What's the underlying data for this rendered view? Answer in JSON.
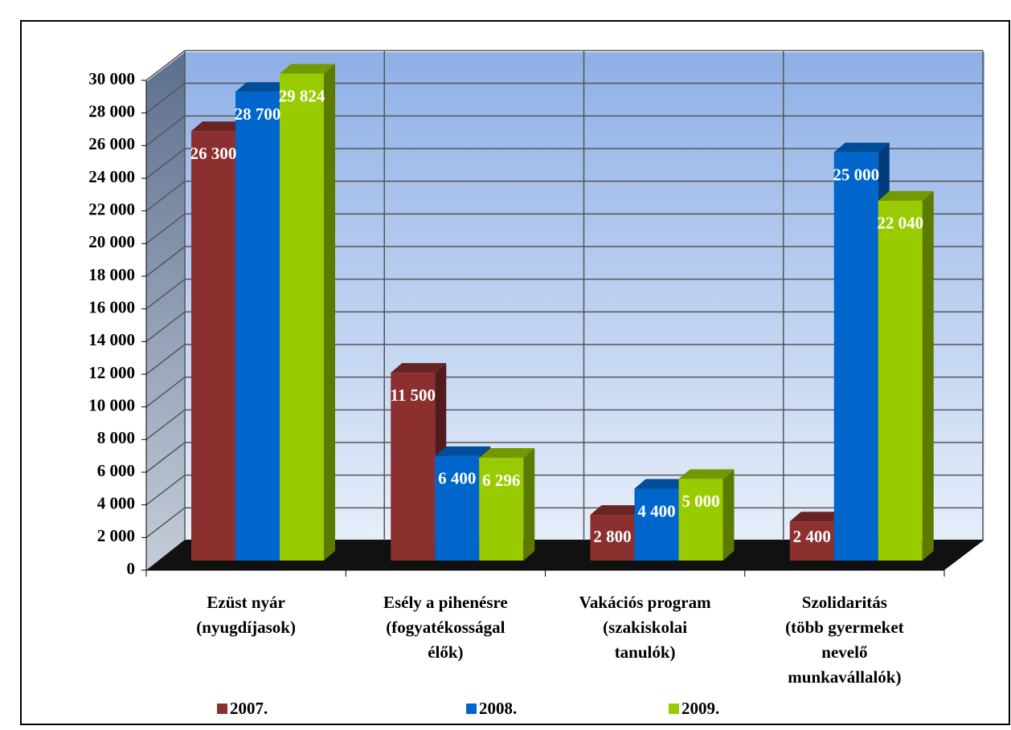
{
  "chart_data": {
    "type": "bar3d",
    "categories": [
      "Ezüst nyár\n(nyugdíjasok)",
      "Esély a pihenésre\n(fogyatékosságal\nélők)",
      "Vakációs program\n(szakiskolai\ntanulók)",
      "Szolidaritás\n(több gyermeket\nnevelő\nmunkavállalók)"
    ],
    "series": [
      {
        "name": "2007.",
        "color": "#8b2f2f",
        "values": [
          26300,
          11500,
          2800,
          2400
        ],
        "value_labels": [
          "26 300",
          "11 500",
          "2 800",
          "2 400"
        ]
      },
      {
        "name": "2008.",
        "color": "#0066cc",
        "values": [
          28700,
          6400,
          4400,
          25000
        ],
        "value_labels": [
          "28 700",
          "6 400",
          "4 400",
          "25 000"
        ]
      },
      {
        "name": "2009.",
        "color": "#99cc00",
        "values": [
          29824,
          6296,
          5000,
          22040
        ],
        "value_labels": [
          "29 824",
          "6 296",
          "5 000",
          "22 040"
        ]
      }
    ],
    "ylim": [
      0,
      30000
    ],
    "yticks": [
      0,
      {
        "value": 2000,
        "label": "2 000"
      },
      {
        "value": 4000,
        "label": "4 000"
      },
      {
        "value": 6000,
        "label": "6 000"
      },
      {
        "value": 8000,
        "label": "8 000"
      },
      {
        "value": 10000,
        "label": "10 000"
      },
      {
        "value": 12000,
        "label": "12 000"
      },
      {
        "value": 14000,
        "label": "14 000"
      },
      {
        "value": 16000,
        "label": "16 000"
      },
      {
        "value": 18000,
        "label": "18 000"
      },
      {
        "value": 20000,
        "label": "20 000"
      },
      {
        "value": 22000,
        "label": "22 000"
      },
      {
        "value": 24000,
        "label": "24 000"
      },
      {
        "value": 26000,
        "label": "26 000"
      },
      {
        "value": 28000,
        "label": "28 000"
      },
      {
        "value": 30000,
        "label": "30 000"
      }
    ],
    "grid": true,
    "legend": "bottom"
  }
}
